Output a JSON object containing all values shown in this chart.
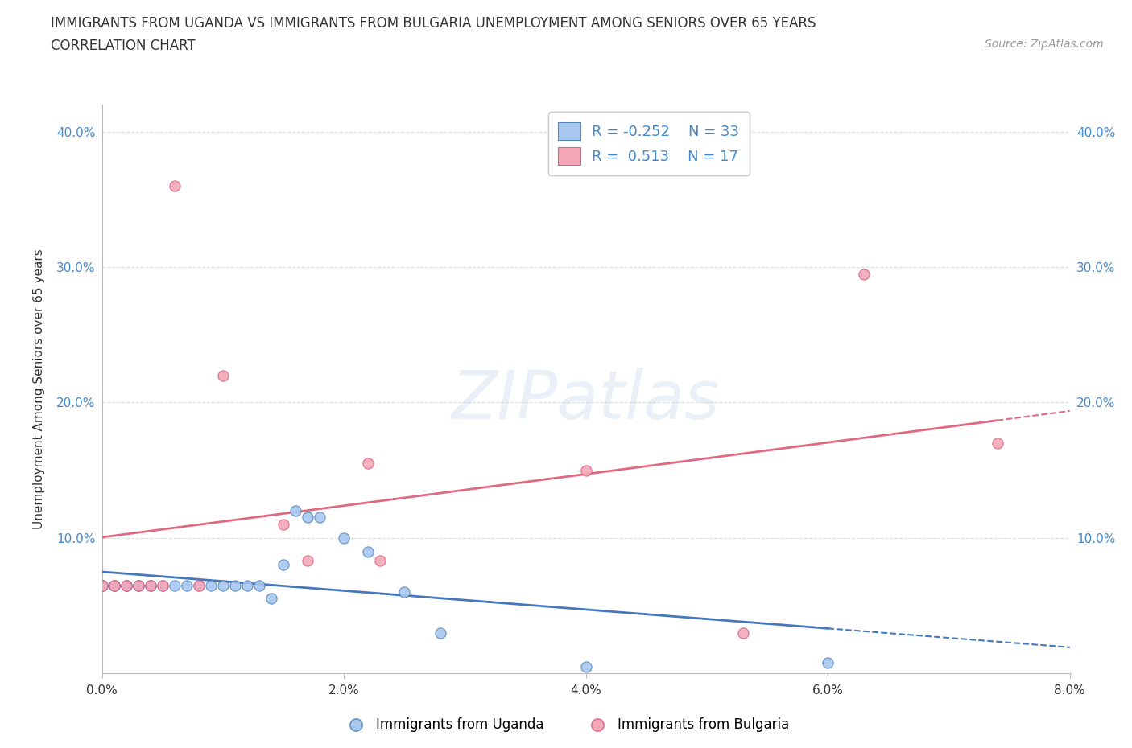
{
  "title_line1": "IMMIGRANTS FROM UGANDA VS IMMIGRANTS FROM BULGARIA UNEMPLOYMENT AMONG SENIORS OVER 65 YEARS",
  "title_line2": "CORRELATION CHART",
  "source_text": "Source: ZipAtlas.com",
  "ylabel": "Unemployment Among Seniors over 65 years",
  "watermark": "ZIPatlas",
  "uganda_x": [
    0.0,
    0.0,
    0.0,
    0.001,
    0.001,
    0.001,
    0.002,
    0.002,
    0.002,
    0.003,
    0.003,
    0.004,
    0.004,
    0.005,
    0.006,
    0.007,
    0.008,
    0.009,
    0.01,
    0.011,
    0.012,
    0.013,
    0.014,
    0.015,
    0.016,
    0.017,
    0.018,
    0.02,
    0.022,
    0.025,
    0.028,
    0.04,
    0.06
  ],
  "uganda_y": [
    0.065,
    0.065,
    0.065,
    0.065,
    0.065,
    0.065,
    0.065,
    0.065,
    0.065,
    0.065,
    0.065,
    0.065,
    0.065,
    0.065,
    0.065,
    0.065,
    0.065,
    0.065,
    0.065,
    0.065,
    0.065,
    0.065,
    0.055,
    0.08,
    0.12,
    0.115,
    0.115,
    0.1,
    0.09,
    0.06,
    0.03,
    0.005,
    0.008
  ],
  "bulgaria_x": [
    0.0,
    0.001,
    0.002,
    0.003,
    0.004,
    0.005,
    0.006,
    0.008,
    0.01,
    0.015,
    0.017,
    0.022,
    0.023,
    0.04,
    0.053,
    0.063,
    0.074
  ],
  "bulgaria_y": [
    0.065,
    0.065,
    0.065,
    0.065,
    0.065,
    0.065,
    0.36,
    0.065,
    0.22,
    0.11,
    0.083,
    0.155,
    0.083,
    0.15,
    0.03,
    0.295,
    0.17
  ],
  "uganda_color": "#a8c8f0",
  "bulgaria_color": "#f4a8b8",
  "uganda_edge_color": "#5588bb",
  "bulgaria_edge_color": "#e06080",
  "uganda_line_color": "#4477bb",
  "bulgaria_line_color": "#e06880",
  "uganda_R": -0.252,
  "uganda_N": 33,
  "bulgaria_R": 0.513,
  "bulgaria_N": 17,
  "xlim": [
    0.0,
    0.08
  ],
  "ylim": [
    0.0,
    0.42
  ],
  "xticks": [
    0.0,
    0.02,
    0.04,
    0.06,
    0.08
  ],
  "xtick_labels": [
    "0.0%",
    "2.0%",
    "4.0%",
    "6.0%",
    "8.0%"
  ],
  "yticks": [
    0.0,
    0.1,
    0.2,
    0.3,
    0.4
  ],
  "ytick_labels_left": [
    "",
    "10.0%",
    "20.0%",
    "30.0%",
    "40.0%"
  ],
  "ytick_labels_right": [
    "",
    "10.0%",
    "20.0%",
    "30.0%",
    "40.0%"
  ],
  "background_color": "#ffffff",
  "grid_color": "#dddddd",
  "tick_color": "#4488cc",
  "text_color": "#333333",
  "source_color": "#999999"
}
